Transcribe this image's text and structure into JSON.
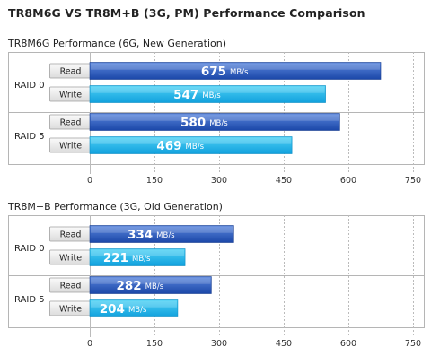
{
  "page": {
    "title": "TR8M6G VS TR8M+B (3G, PM) Performance Comparison"
  },
  "chart_data": [
    {
      "type": "bar",
      "orientation": "horizontal",
      "title": "TR8M6G Performance (6G, New Generation)",
      "groups": [
        "RAID 0",
        "RAID 5"
      ],
      "categories": [
        "Read",
        "Write"
      ],
      "unit": "MB/s",
      "bars": [
        {
          "group": "RAID 0",
          "category": "Read",
          "value": 675,
          "label": "675",
          "color": "dark-blue"
        },
        {
          "group": "RAID 0",
          "category": "Write",
          "value": 547,
          "label": "547",
          "color": "light-blue"
        },
        {
          "group": "RAID 5",
          "category": "Read",
          "value": 580,
          "label": "580",
          "color": "dark-blue"
        },
        {
          "group": "RAID 5",
          "category": "Write",
          "value": 469,
          "label": "469",
          "color": "light-blue"
        }
      ],
      "xlim": [
        0,
        750
      ],
      "xticks": [
        0,
        150,
        300,
        450,
        600,
        750
      ],
      "grid": true
    },
    {
      "type": "bar",
      "orientation": "horizontal",
      "title": "TR8M+B Performance (3G, Old Generation)",
      "groups": [
        "RAID 0",
        "RAID 5"
      ],
      "categories": [
        "Read",
        "Write"
      ],
      "unit": "MB/s",
      "bars": [
        {
          "group": "RAID 0",
          "category": "Read",
          "value": 334,
          "label": "334",
          "color": "dark-blue"
        },
        {
          "group": "RAID 0",
          "category": "Write",
          "value": 221,
          "label": "221",
          "color": "light-blue"
        },
        {
          "group": "RAID 5",
          "category": "Read",
          "value": 282,
          "label": "282",
          "color": "dark-blue"
        },
        {
          "group": "RAID 5",
          "category": "Write",
          "value": 204,
          "label": "204",
          "color": "light-blue"
        }
      ],
      "xlim": [
        0,
        750
      ],
      "xticks": [
        0,
        150,
        300,
        450,
        600,
        750
      ],
      "grid": true
    }
  ],
  "colors": {
    "dark_blue_top": "#5a86dc",
    "dark_blue_bottom": "#1b47a8",
    "light_blue_top": "#4fd2f5",
    "light_blue_bottom": "#10a0dd",
    "grid": "#bbbbbb",
    "frame": "#b5b5b5",
    "button_fill": "#ececec",
    "button_border": "#a0a0a0"
  }
}
